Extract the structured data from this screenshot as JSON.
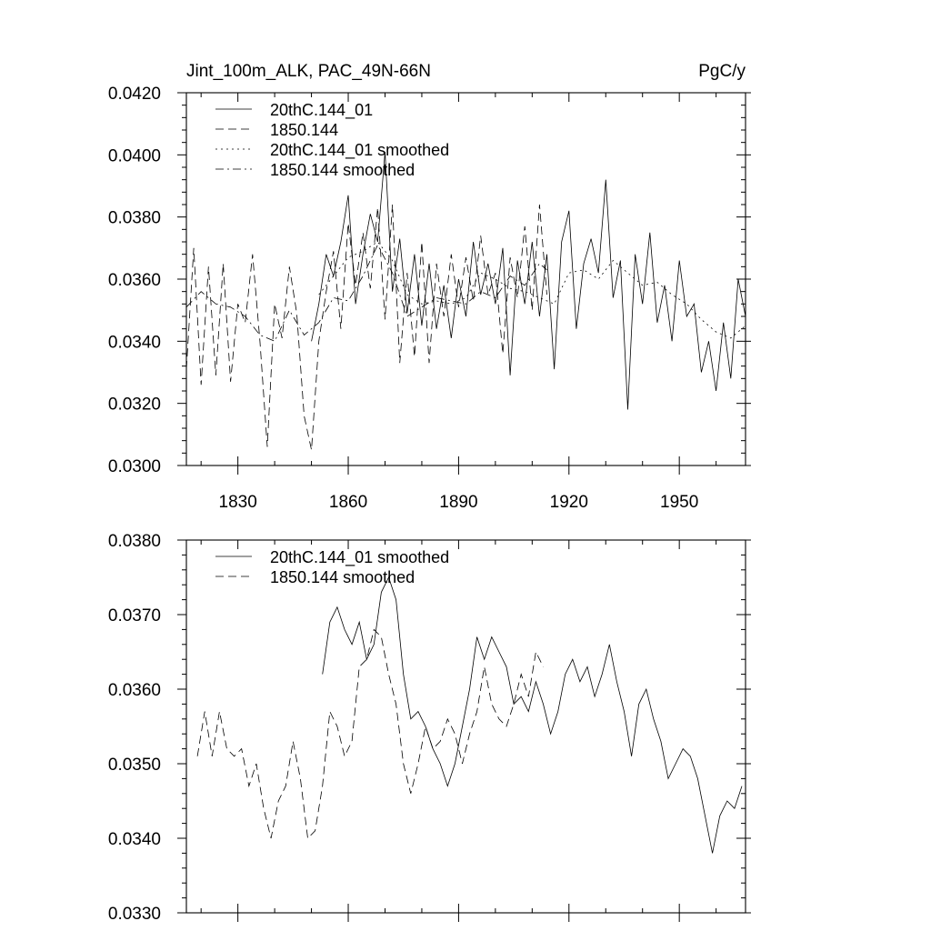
{
  "chart_data": [
    {
      "type": "line",
      "title_left": "Jint_100m_ALK, PAC_49N-66N",
      "title_right": "PgC/y",
      "xlabel": "",
      "ylabel": "",
      "xlim": [
        1816,
        1968
      ],
      "ylim": [
        0.03,
        0.042
      ],
      "x_ticks": [
        1830,
        1860,
        1890,
        1920,
        1950
      ],
      "x_tick_labels": [
        "1830",
        "1860",
        "1890",
        "1920",
        "1950"
      ],
      "y_ticks": [
        0.03,
        0.032,
        0.034,
        0.036,
        0.038,
        0.04,
        0.042
      ],
      "y_tick_labels": [
        "0.0300",
        "0.0320",
        "0.0340",
        "0.0360",
        "0.0380",
        "0.0400",
        "0.0420"
      ],
      "legend_position": "top-left",
      "series": [
        {
          "name": "20thC.144_01",
          "style": "solid",
          "x": [
            1850,
            1852,
            1854,
            1856,
            1858,
            1860,
            1862,
            1864,
            1866,
            1868,
            1870,
            1872,
            1874,
            1876,
            1878,
            1880,
            1882,
            1884,
            1886,
            1888,
            1890,
            1892,
            1894,
            1896,
            1898,
            1900,
            1902,
            1904,
            1906,
            1908,
            1910,
            1912,
            1914,
            1916,
            1918,
            1920,
            1922,
            1924,
            1926,
            1928,
            1930,
            1932,
            1934,
            1936,
            1938,
            1940,
            1942,
            1944,
            1946,
            1948,
            1950,
            1952,
            1954,
            1956,
            1958,
            1960,
            1962,
            1964,
            1966,
            1968
          ],
          "values": [
            0.034,
            0.0352,
            0.0368,
            0.0361,
            0.0372,
            0.0387,
            0.0352,
            0.0368,
            0.0381,
            0.0372,
            0.0401,
            0.0356,
            0.0373,
            0.0349,
            0.0368,
            0.0345,
            0.0365,
            0.0344,
            0.0358,
            0.0341,
            0.036,
            0.0348,
            0.0372,
            0.0355,
            0.0365,
            0.0352,
            0.037,
            0.0329,
            0.0366,
            0.0352,
            0.0372,
            0.0348,
            0.0368,
            0.0331,
            0.0372,
            0.0382,
            0.0344,
            0.0365,
            0.0373,
            0.0362,
            0.0392,
            0.0354,
            0.0366,
            0.0318,
            0.0368,
            0.0352,
            0.0375,
            0.0346,
            0.0358,
            0.034,
            0.0366,
            0.0348,
            0.0352,
            0.033,
            0.034,
            0.0324,
            0.0346,
            0.0328,
            0.036,
            0.0348
          ]
        },
        {
          "name": "1850.144",
          "style": "dashed",
          "x": [
            1816,
            1818,
            1820,
            1822,
            1824,
            1826,
            1828,
            1830,
            1832,
            1834,
            1836,
            1838,
            1840,
            1842,
            1844,
            1846,
            1848,
            1850,
            1852,
            1854,
            1856,
            1858,
            1860,
            1862,
            1864,
            1866,
            1868,
            1870,
            1872,
            1874,
            1876,
            1878,
            1880,
            1882,
            1884,
            1886,
            1888,
            1890,
            1892,
            1894,
            1896,
            1898,
            1900,
            1902,
            1904,
            1906,
            1908,
            1910,
            1912,
            1914
          ],
          "values": [
            0.0331,
            0.037,
            0.0326,
            0.0364,
            0.0329,
            0.0365,
            0.0327,
            0.0352,
            0.0346,
            0.0368,
            0.034,
            0.0306,
            0.0352,
            0.0341,
            0.0364,
            0.0349,
            0.0316,
            0.0305,
            0.034,
            0.0356,
            0.0369,
            0.0344,
            0.0378,
            0.0358,
            0.0375,
            0.0357,
            0.0383,
            0.0347,
            0.0384,
            0.0333,
            0.0362,
            0.0335,
            0.0372,
            0.0333,
            0.0365,
            0.0348,
            0.0368,
            0.0351,
            0.0367,
            0.0353,
            0.0374,
            0.0355,
            0.0362,
            0.0336,
            0.0367,
            0.0354,
            0.0377,
            0.035,
            0.0384,
            0.0355
          ]
        },
        {
          "name": "20thC.144_01 smoothed",
          "style": "dotted",
          "x": [
            1852,
            1856,
            1860,
            1864,
            1868,
            1872,
            1876,
            1880,
            1884,
            1888,
            1892,
            1896,
            1900,
            1904,
            1908,
            1912,
            1916,
            1920,
            1924,
            1928,
            1932,
            1936,
            1940,
            1944,
            1948,
            1952,
            1956,
            1960,
            1964,
            1968
          ],
          "values": [
            0.0355,
            0.0361,
            0.0367,
            0.0369,
            0.0372,
            0.0366,
            0.0355,
            0.0352,
            0.0353,
            0.0352,
            0.0354,
            0.0362,
            0.036,
            0.0357,
            0.0356,
            0.0354,
            0.0352,
            0.0362,
            0.0363,
            0.036,
            0.0366,
            0.0362,
            0.0358,
            0.0359,
            0.0355,
            0.0352,
            0.0347,
            0.0343,
            0.0341,
            0.0345
          ]
        },
        {
          "name": "1850.144 smoothed",
          "style": "dashdot",
          "x": [
            1816,
            1820,
            1824,
            1828,
            1832,
            1836,
            1840,
            1844,
            1848,
            1852,
            1856,
            1860,
            1864,
            1868,
            1872,
            1876,
            1880,
            1884,
            1888,
            1892,
            1896,
            1900,
            1904,
            1908,
            1912,
            1914
          ],
          "values": [
            0.0351,
            0.0356,
            0.0352,
            0.0351,
            0.0348,
            0.0342,
            0.034,
            0.035,
            0.0342,
            0.0346,
            0.0354,
            0.0353,
            0.0361,
            0.0371,
            0.0362,
            0.0348,
            0.0351,
            0.0354,
            0.0353,
            0.0352,
            0.0356,
            0.0354,
            0.0361,
            0.0358,
            0.0365,
            0.0363
          ]
        }
      ]
    },
    {
      "type": "line",
      "xlabel": "",
      "ylabel": "",
      "xlim": [
        1816,
        1968
      ],
      "ylim": [
        0.033,
        0.038
      ],
      "x_ticks": [
        1830,
        1860,
        1890,
        1920,
        1950
      ],
      "y_ticks": [
        0.033,
        0.034,
        0.035,
        0.036,
        0.037,
        0.038
      ],
      "y_tick_labels": [
        "0.0330",
        "0.0340",
        "0.0350",
        "0.0360",
        "0.0370",
        "0.0380"
      ],
      "legend_position": "top-left",
      "series": [
        {
          "name": "20thC.144_01 smoothed",
          "style": "solid",
          "x": [
            1853,
            1855,
            1857,
            1859,
            1861,
            1863,
            1865,
            1867,
            1869,
            1871,
            1873,
            1875,
            1877,
            1879,
            1881,
            1883,
            1885,
            1887,
            1889,
            1891,
            1893,
            1895,
            1897,
            1899,
            1901,
            1903,
            1905,
            1907,
            1909,
            1911,
            1913,
            1915,
            1917,
            1919,
            1921,
            1923,
            1925,
            1927,
            1929,
            1931,
            1933,
            1935,
            1937,
            1939,
            1941,
            1943,
            1945,
            1947,
            1949,
            1951,
            1953,
            1955,
            1957,
            1959,
            1961,
            1963,
            1965,
            1967
          ],
          "values": [
            0.0362,
            0.0369,
            0.0371,
            0.0368,
            0.0366,
            0.0369,
            0.0364,
            0.0366,
            0.0373,
            0.0375,
            0.0372,
            0.0362,
            0.0356,
            0.0357,
            0.0355,
            0.0352,
            0.035,
            0.0347,
            0.035,
            0.0355,
            0.036,
            0.0367,
            0.0364,
            0.0367,
            0.0365,
            0.0363,
            0.0358,
            0.0359,
            0.0357,
            0.0361,
            0.0358,
            0.0354,
            0.0357,
            0.0362,
            0.0364,
            0.0361,
            0.0363,
            0.0359,
            0.0362,
            0.0366,
            0.0361,
            0.0357,
            0.0351,
            0.0358,
            0.036,
            0.0356,
            0.0353,
            0.0348,
            0.035,
            0.0352,
            0.0351,
            0.0348,
            0.0343,
            0.0338,
            0.0343,
            0.0345,
            0.0344,
            0.0347
          ]
        },
        {
          "name": "1850.144 smoothed",
          "style": "dashed",
          "x": [
            1819,
            1821,
            1823,
            1825,
            1827,
            1829,
            1831,
            1833,
            1835,
            1837,
            1839,
            1841,
            1843,
            1845,
            1847,
            1849,
            1851,
            1853,
            1855,
            1857,
            1859,
            1861,
            1863,
            1865,
            1867,
            1869,
            1871,
            1873,
            1875,
            1877,
            1879,
            1881,
            1883,
            1885,
            1887,
            1889,
            1891,
            1893,
            1895,
            1897,
            1899,
            1901,
            1903,
            1905,
            1907,
            1909,
            1911,
            1913
          ],
          "values": [
            0.0351,
            0.0357,
            0.0351,
            0.0357,
            0.0352,
            0.0351,
            0.0352,
            0.0347,
            0.035,
            0.0344,
            0.034,
            0.0345,
            0.0347,
            0.0353,
            0.0348,
            0.034,
            0.0341,
            0.0347,
            0.0357,
            0.0355,
            0.0351,
            0.0353,
            0.0363,
            0.0364,
            0.0368,
            0.0367,
            0.0362,
            0.0358,
            0.035,
            0.0346,
            0.035,
            0.0355,
            0.0352,
            0.0353,
            0.0356,
            0.0354,
            0.035,
            0.0354,
            0.0357,
            0.0363,
            0.0358,
            0.0356,
            0.0355,
            0.0358,
            0.0362,
            0.0359,
            0.0365,
            0.0363
          ]
        }
      ]
    }
  ]
}
